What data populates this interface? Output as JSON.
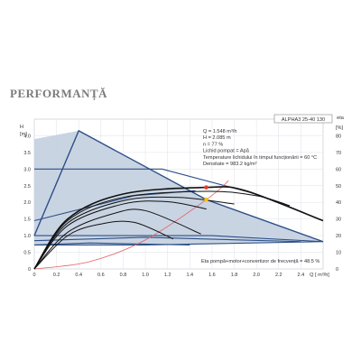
{
  "page_title": "PERFORMANȚĂ",
  "chart_data": {
    "type": "line",
    "model_label": "ALPHA3 25-40 130",
    "left_axis": {
      "label_top": "H",
      "label_unit": "[m]",
      "ticks": [
        "0",
        "0.5",
        "1.0",
        "1.5",
        "2.0",
        "2.5",
        "3.0",
        "3.5",
        "4.0"
      ],
      "range": [
        0,
        4.5
      ]
    },
    "right_axis": {
      "label_top": "eta",
      "label_unit": "[%]",
      "ticks": [
        "0",
        "10",
        "20",
        "30",
        "40",
        "50",
        "60",
        "70",
        "80"
      ],
      "range": [
        0,
        90
      ]
    },
    "x_axis": {
      "label": "Q [ m³/h]",
      "ticks": [
        "0",
        "0.2",
        "0.4",
        "0.6",
        "0.8",
        "1.0",
        "1.2",
        "1.4",
        "1.6",
        "1.8",
        "2.0",
        "2.2",
        "2.4"
      ],
      "range": [
        0,
        2.6
      ]
    },
    "operating_point": {
      "q": 1.548,
      "h": 2.085,
      "eta": 48.5
    },
    "info_lines": [
      "Q = 1.548  m³/h",
      "H = 2.085 m",
      "n = 77 %",
      "Lichid pompat = Apă",
      "Temperature lichidului în timpul funcționării = 60  °C",
      "Densitate = 983.2  kg/m³"
    ],
    "eta_label": "Eta pompă+motor+convertizor de frecvență = 48.5 %",
    "envelope": [
      [
        0,
        1.0
      ],
      [
        0,
        3.9
      ],
      [
        0.4,
        4.15
      ],
      [
        1.55,
        2.08
      ],
      [
        2.6,
        0.82
      ],
      [
        1.0,
        0.72
      ],
      [
        0,
        0.72
      ]
    ],
    "max_curve": [
      [
        0,
        1.0
      ],
      [
        0.4,
        4.15
      ],
      [
        1.55,
        2.08
      ],
      [
        2.6,
        0.82
      ]
    ],
    "speed_lines": [
      [
        [
          0,
          3.0
        ],
        [
          1.15,
          3.0
        ],
        [
          2.0,
          2.25
        ]
      ],
      [
        [
          0,
          1.45
        ],
        [
          0.9,
          2.2
        ],
        [
          1.45,
          2.35
        ]
      ],
      [
        [
          0,
          1.0
        ],
        [
          1.6,
          1.0
        ],
        [
          2.6,
          0.82
        ]
      ],
      [
        [
          0,
          0.85
        ],
        [
          1.0,
          0.95
        ],
        [
          2.4,
          0.82
        ]
      ],
      [
        [
          0,
          0.72
        ],
        [
          0.5,
          0.78
        ],
        [
          1.4,
          0.72
        ]
      ]
    ],
    "pump_curves": [
      {
        "points": [
          [
            0,
            0
          ],
          [
            0.3,
            1.5
          ],
          [
            0.8,
            2.25
          ],
          [
            1.55,
            2.45
          ],
          [
            1.9,
            2.35
          ],
          [
            2.6,
            1.45
          ]
        ]
      },
      {
        "points": [
          [
            0,
            0
          ],
          [
            0.3,
            1.45
          ],
          [
            0.8,
            2.15
          ],
          [
            1.55,
            2.33
          ],
          [
            2.0,
            2.2
          ],
          [
            2.3,
            1.9
          ]
        ]
      },
      {
        "points": [
          [
            0,
            0
          ],
          [
            0.3,
            1.38
          ],
          [
            0.8,
            2.05
          ],
          [
            1.3,
            2.15
          ],
          [
            1.8,
            1.95
          ]
        ]
      },
      {
        "points": [
          [
            0,
            0
          ],
          [
            0.3,
            1.3
          ],
          [
            0.8,
            1.95
          ],
          [
            1.2,
            2.02
          ],
          [
            1.55,
            1.8
          ]
        ]
      },
      {
        "points": [
          [
            0,
            0
          ],
          [
            0.3,
            1.1
          ],
          [
            0.7,
            1.65
          ],
          [
            1.0,
            1.75
          ],
          [
            1.5,
            1.05
          ]
        ]
      },
      {
        "points": [
          [
            0,
            0
          ],
          [
            0.3,
            1.0
          ],
          [
            0.6,
            1.35
          ],
          [
            0.9,
            1.4
          ],
          [
            1.25,
            0.9
          ]
        ]
      }
    ],
    "system_curve": [
      [
        0,
        0
      ],
      [
        0.5,
        0.22
      ],
      [
        1.0,
        0.87
      ],
      [
        1.55,
        2.085
      ],
      [
        1.75,
        2.65
      ]
    ],
    "colors": {
      "envelope_fill": "#c3cfe0",
      "envelope_line": "#2c4f86",
      "curve": "#111111",
      "system": "#e06060",
      "point_red": "#e53b2c",
      "point_yellow": "#f5c200",
      "grid": "#dde2ea"
    }
  }
}
